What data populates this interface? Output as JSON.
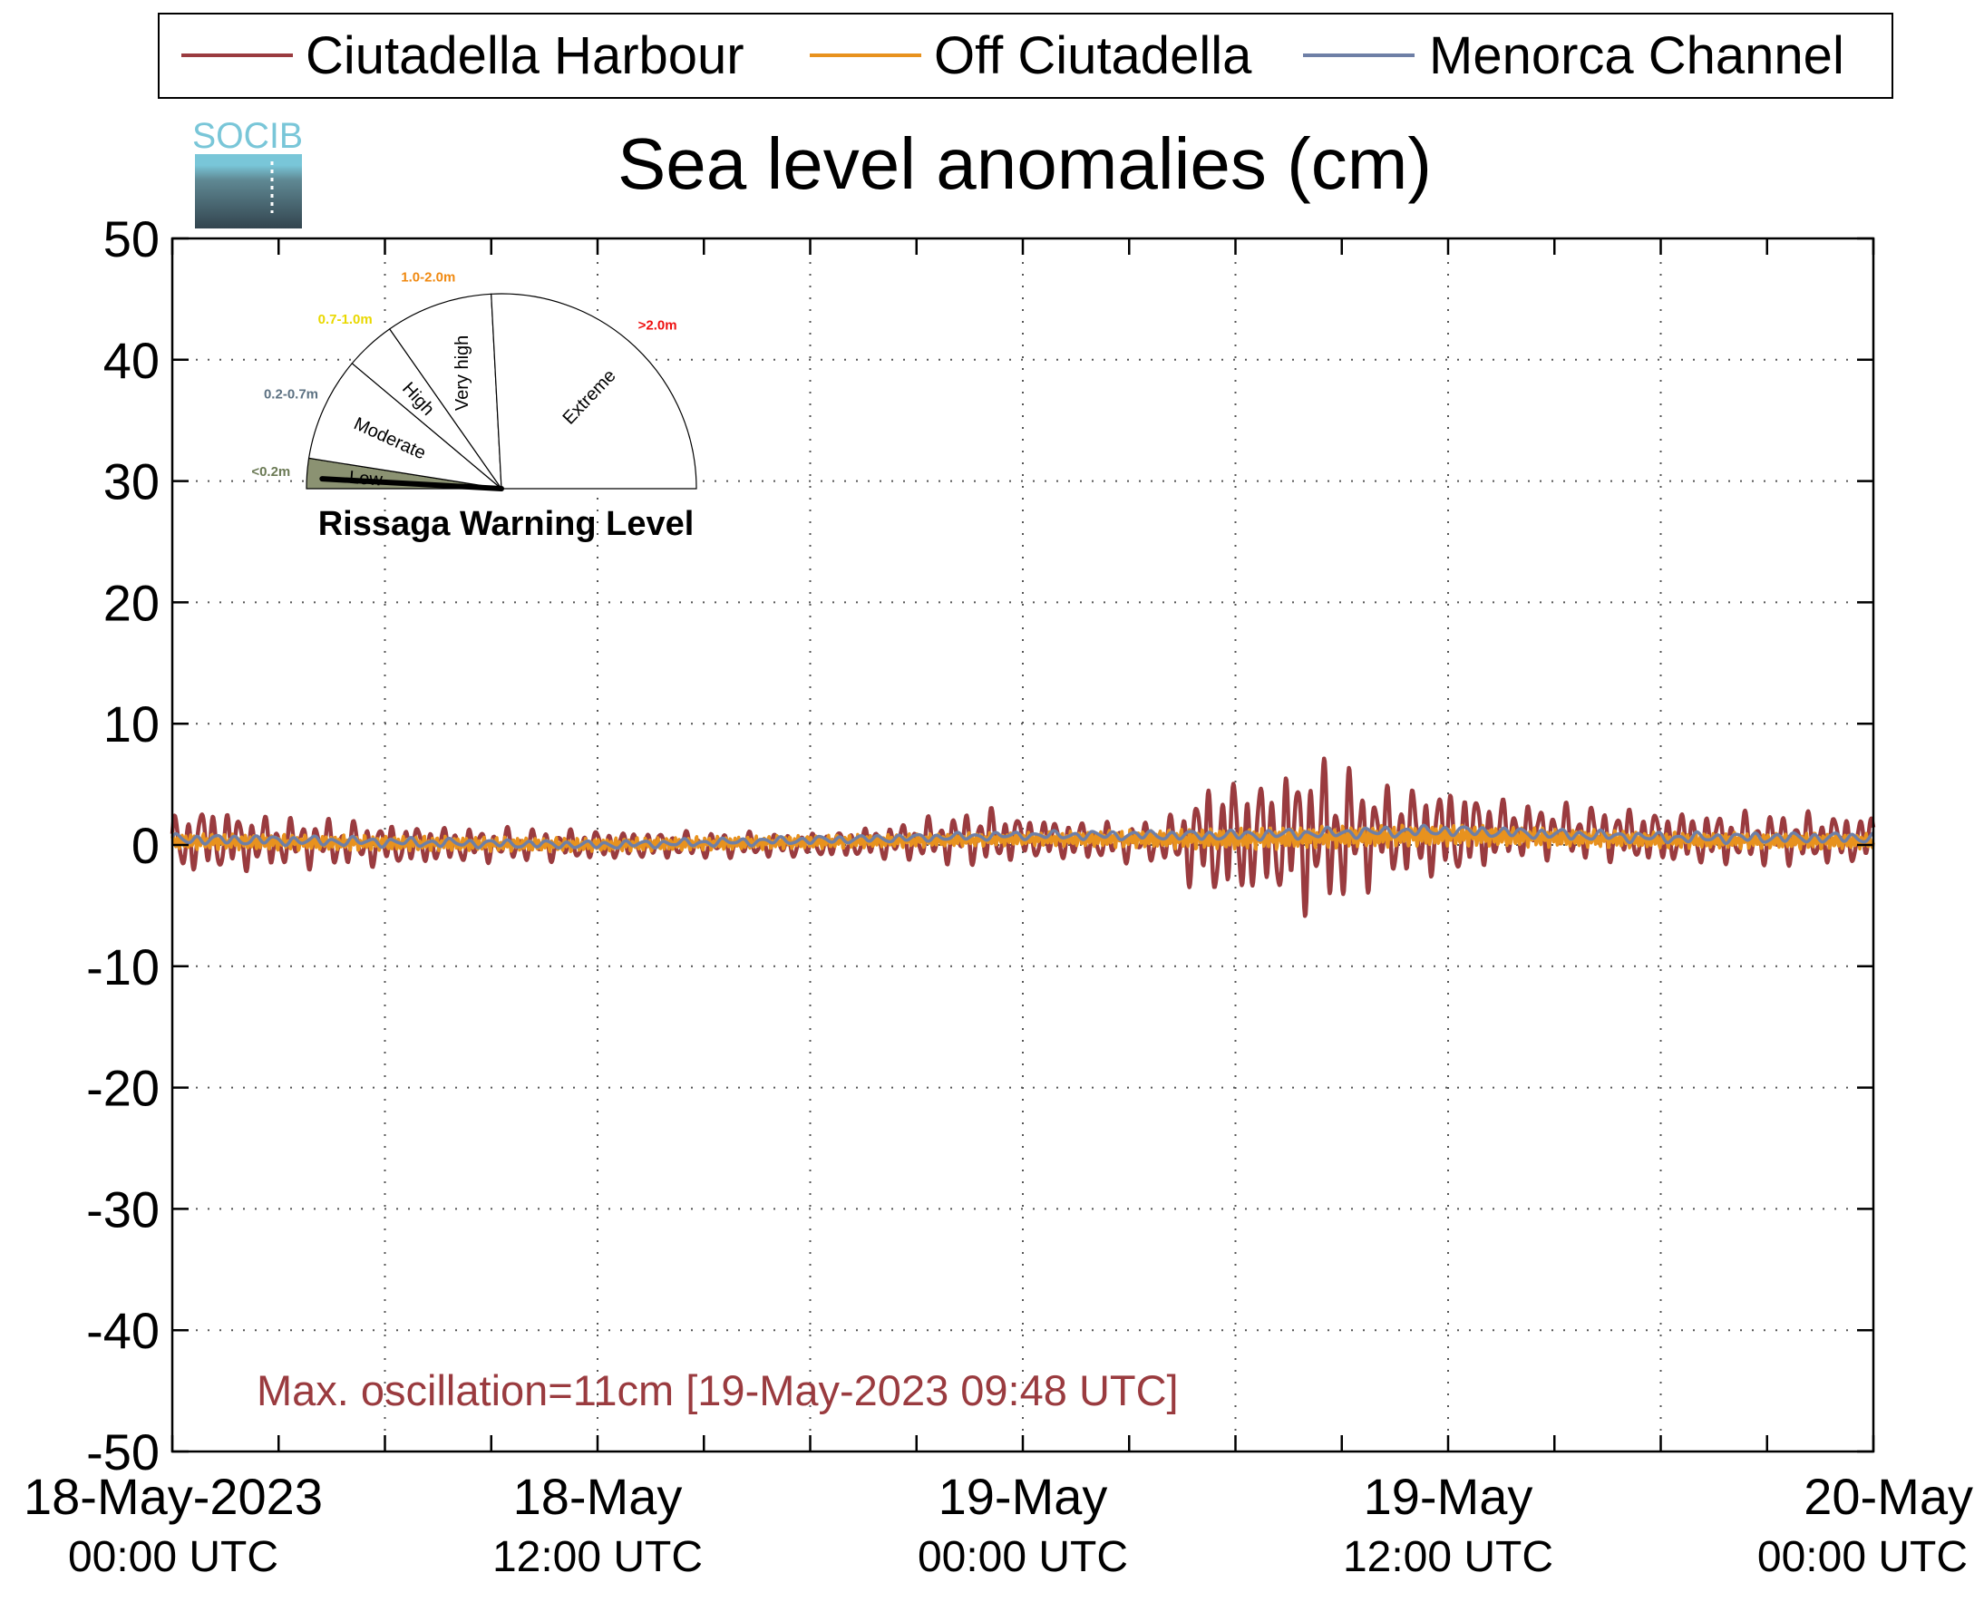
{
  "chart_data": {
    "type": "line",
    "title": "Sea level anomalies (cm)",
    "ylim": [
      -50,
      50
    ],
    "yticks": [
      50,
      40,
      30,
      20,
      10,
      0,
      -10,
      -20,
      -30,
      -40,
      -50
    ],
    "xlim_hours": [
      0,
      48
    ],
    "x_major_ticks": [
      {
        "hour": 0,
        "date": "18-May-2023",
        "time": "00:00 UTC"
      },
      {
        "hour": 12,
        "date": "18-May",
        "time": "12:00 UTC"
      },
      {
        "hour": 24,
        "date": "19-May",
        "time": "00:00 UTC"
      },
      {
        "hour": 36,
        "date": "19-May",
        "time": "12:00 UTC"
      },
      {
        "hour": 48,
        "date": "20-May",
        "time": "00:00 UTC"
      }
    ],
    "grid": true,
    "legend_position": "top",
    "series": [
      {
        "name": "Ciutadella Harbour",
        "color": "#9a3b3f",
        "envelope": {
          "hours": [
            0,
            1,
            2,
            3,
            4,
            6,
            8,
            10,
            12,
            14,
            16,
            18,
            20,
            22,
            23,
            24,
            26,
            28,
            29,
            30,
            31,
            32,
            33,
            34,
            35,
            36,
            38,
            40,
            42,
            44,
            46,
            48
          ],
          "amplitude": [
            2.2,
            2.5,
            2.2,
            1.8,
            1.8,
            1.6,
            1.3,
            1.2,
            1.1,
            1.0,
            0.9,
            0.9,
            1.2,
            1.8,
            2.2,
            1.6,
            1.4,
            1.5,
            4.0,
            4.6,
            4.2,
            5.8,
            5.2,
            3.5,
            3.3,
            3.5,
            2.0,
            2.0,
            2.0,
            1.9,
            1.9,
            1.8
          ],
          "mean": [
            0.0,
            0.5,
            0.2,
            0.2,
            0.2,
            0.0,
            0.0,
            0.0,
            0.0,
            0.0,
            0.0,
            0.0,
            0.2,
            0.5,
            0.6,
            0.6,
            0.3,
            0.2,
            0.4,
            0.5,
            0.6,
            0.8,
            0.8,
            1.0,
            1.0,
            1.0,
            1.2,
            1.0,
            0.6,
            0.5,
            0.5,
            0.5
          ]
        }
      },
      {
        "name": "Off Ciutadella",
        "color": "#e8921e",
        "envelope": {
          "hours": [
            0,
            12,
            24,
            30,
            36,
            42,
            48
          ],
          "amplitude": [
            0.6,
            0.5,
            0.5,
            0.8,
            0.8,
            0.6,
            0.6
          ],
          "mean": [
            0.3,
            0.0,
            0.5,
            0.5,
            0.8,
            0.4,
            0.3
          ]
        }
      },
      {
        "name": "Menorca Channel",
        "color": "#6e7fa6",
        "envelope": {
          "hours": [
            0,
            12,
            24,
            30,
            36,
            42,
            48
          ],
          "amplitude": [
            0.4,
            0.3,
            0.3,
            0.4,
            0.4,
            0.4,
            0.4
          ],
          "mean": [
            0.5,
            0.0,
            0.8,
            0.8,
            1.2,
            0.6,
            0.6
          ]
        }
      }
    ],
    "annotation": {
      "text": "Max. oscillation=11cm [19-May-2023 09:48 UTC]",
      "color": "#9a3b3f"
    }
  },
  "logo": {
    "text": "SOCIB",
    "color_top": "#79c6d8",
    "color_bottom": "#33454f"
  },
  "gauge": {
    "title": "Rissaga Warning Level",
    "current_level_fraction_of_low": 0.35,
    "sectors": [
      {
        "label": "Low",
        "range": "<0.2m",
        "range_color": "#6b7a55",
        "fill": "#8b9272"
      },
      {
        "label": "Moderate",
        "range": "0.2-0.7m",
        "range_color": "#5c7182",
        "fill": "#ffffff"
      },
      {
        "label": "High",
        "range": "0.7-1.0m",
        "range_color": "#e9d800",
        "fill": "#ffffff"
      },
      {
        "label": "Very high",
        "range": "1.0-2.0m",
        "range_color": "#f08a12",
        "fill": "#ffffff"
      },
      {
        "label": "Extreme",
        "range": ">2.0m",
        "range_color": "#ee1111",
        "fill": "#ffffff"
      }
    ]
  }
}
